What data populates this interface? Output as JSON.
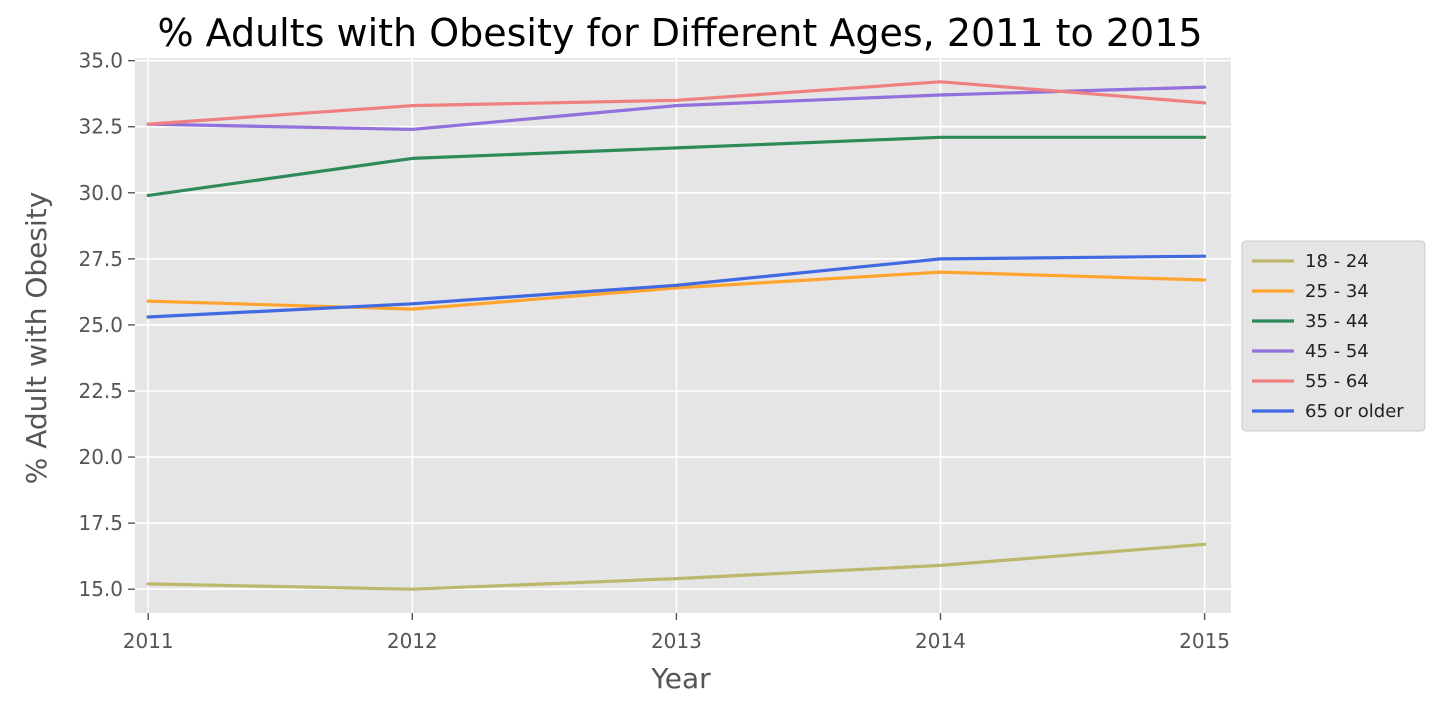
{
  "chart_data": {
    "type": "line",
    "title": "% Adults with Obesity for Different Ages, 2011 to 2015",
    "xlabel": "Year",
    "ylabel": "% Adult with Obesity",
    "x": [
      2011,
      2012,
      2013,
      2014,
      2015
    ],
    "x_tick_labels": [
      "2011",
      "2012",
      "2013",
      "2014",
      "2015"
    ],
    "y_ticks": [
      15.0,
      17.5,
      20.0,
      22.5,
      25.0,
      27.5,
      30.0,
      32.5,
      35.0
    ],
    "y_tick_labels": [
      "15.0",
      "17.5",
      "20.0",
      "22.5",
      "25.0",
      "27.5",
      "30.0",
      "32.5",
      "35.0"
    ],
    "ylim": [
      14.1,
      35.1
    ],
    "xlim": [
      2010.95,
      2015.1
    ],
    "grid": true,
    "legend_placement": "center-right, outside plot",
    "background_color": "#e5e5e5",
    "series": [
      {
        "name": "18 - 24",
        "color": "#bdb76b",
        "values": [
          15.2,
          15.0,
          15.4,
          15.9,
          16.7
        ]
      },
      {
        "name": "25 - 34",
        "color": "#ffa42e",
        "values": [
          25.9,
          25.6,
          26.4,
          27.0,
          26.7
        ]
      },
      {
        "name": "35 - 44",
        "color": "#2e8b57",
        "values": [
          29.9,
          31.3,
          31.7,
          32.1,
          32.1
        ]
      },
      {
        "name": "45 - 54",
        "color": "#9370db",
        "values": [
          32.6,
          32.4,
          33.3,
          33.7,
          34.0
        ]
      },
      {
        "name": "55 - 64",
        "color": "#f08080",
        "values": [
          32.6,
          33.3,
          33.5,
          34.2,
          33.4
        ]
      },
      {
        "name": "65 or older",
        "color": "#4169e1",
        "values": [
          25.3,
          25.8,
          26.5,
          27.5,
          27.6
        ]
      }
    ]
  }
}
